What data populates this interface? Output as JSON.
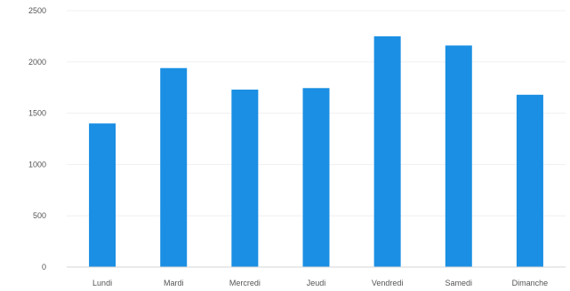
{
  "chart_data": {
    "type": "bar",
    "categories": [
      "Lundi",
      "Mardi",
      "Mercredi",
      "Jeudi",
      "Vendredi",
      "Samedi",
      "Dimanche"
    ],
    "values": [
      1400,
      1940,
      1730,
      1745,
      2250,
      2160,
      1680
    ],
    "ylim": [
      0,
      2500
    ],
    "yticks": [
      0,
      500,
      1000,
      1500,
      2000,
      2500
    ],
    "ytick_labels": [
      "0",
      "500",
      "1000",
      "1500",
      "2000",
      "2500"
    ],
    "grid": true,
    "legend": "none",
    "bar_color": "#1a8fe3"
  }
}
